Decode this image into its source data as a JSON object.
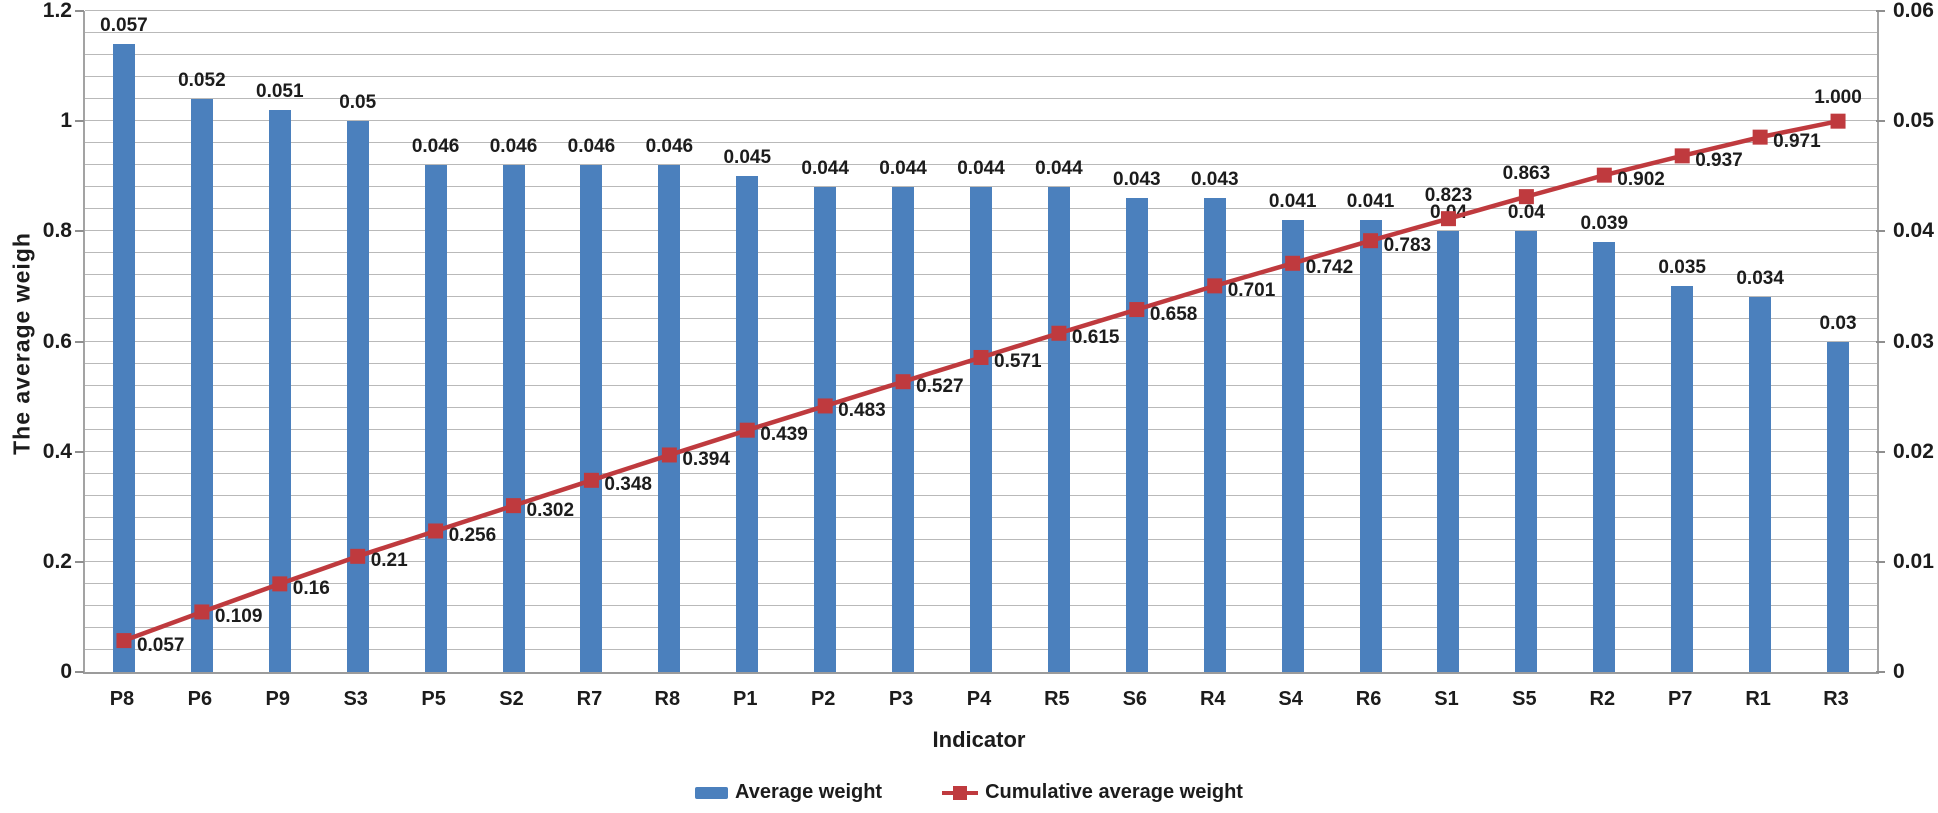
{
  "chart_data": {
    "type": "bar",
    "subtype": "pareto-combo (bars + cumulative line)",
    "categories": [
      "P8",
      "P6",
      "P9",
      "S3",
      "P5",
      "S2",
      "R7",
      "R8",
      "P1",
      "P2",
      "P3",
      "P4",
      "R5",
      "S6",
      "R4",
      "S4",
      "R6",
      "S1",
      "S5",
      "R2",
      "P7",
      "R1",
      "R3"
    ],
    "series": [
      {
        "name": "Average weight",
        "type": "bar",
        "axis": "right",
        "color": "#4b80bd",
        "values": [
          0.057,
          0.052,
          0.051,
          0.05,
          0.046,
          0.046,
          0.046,
          0.046,
          0.045,
          0.044,
          0.044,
          0.044,
          0.044,
          0.043,
          0.043,
          0.041,
          0.041,
          0.04,
          0.04,
          0.039,
          0.035,
          0.034,
          0.03
        ],
        "labels": [
          "0.057",
          "0.052",
          "0.051",
          "0.05",
          "0.046",
          "0.046",
          "0.046",
          "0.046",
          "0.045",
          "0.044",
          "0.044",
          "0.044",
          "0.044",
          "0.043",
          "0.043",
          "0.041",
          "0.041",
          "0.04",
          "0.04",
          "0.039",
          "0.035",
          "0.034",
          "0.03"
        ]
      },
      {
        "name": "Cumulative average weight",
        "type": "line",
        "axis": "left",
        "color": "#bf3a3e",
        "marker": "square",
        "values": [
          0.057,
          0.109,
          0.16,
          0.21,
          0.256,
          0.302,
          0.348,
          0.394,
          0.439,
          0.483,
          0.527,
          0.571,
          0.615,
          0.658,
          0.701,
          0.742,
          0.783,
          0.823,
          0.863,
          0.902,
          0.937,
          0.971,
          1.0
        ],
        "labels": [
          "0.057",
          "0.109",
          "0.16",
          "0.21",
          "0.256",
          "0.302",
          "0.348",
          "0.394",
          "0.439",
          "0.483",
          "0.527",
          "0.571",
          "0.615",
          "0.658",
          "0.701",
          "0.742",
          "0.783",
          "0.823",
          "0.863",
          "0.902",
          "0.937",
          "0.971",
          "1.000"
        ],
        "label_positions": [
          "right",
          "right",
          "right",
          "right",
          "right",
          "right",
          "right",
          "right",
          "right",
          "right",
          "right",
          "right",
          "right",
          "right",
          "right",
          "right",
          "right",
          "above",
          "above",
          "right",
          "right",
          "right",
          "above"
        ]
      }
    ],
    "left_axis": {
      "title": "The average weigh",
      "min": 0,
      "max": 1.2,
      "ticks": [
        "1.2",
        "1",
        "0.8",
        "0.6",
        "0.4",
        "0.2",
        "0"
      ]
    },
    "right_axis": {
      "min": 0,
      "max": 0.06,
      "ticks": [
        "0.06",
        "0.05",
        "0.04",
        "0.03",
        "0.02",
        "0.01",
        "0"
      ]
    },
    "x_axis": {
      "title": "Indicator"
    },
    "layout": {
      "grid_intervals": 30,
      "grid_color": "#b9b9b9",
      "legend_position": "bottom-center"
    }
  }
}
